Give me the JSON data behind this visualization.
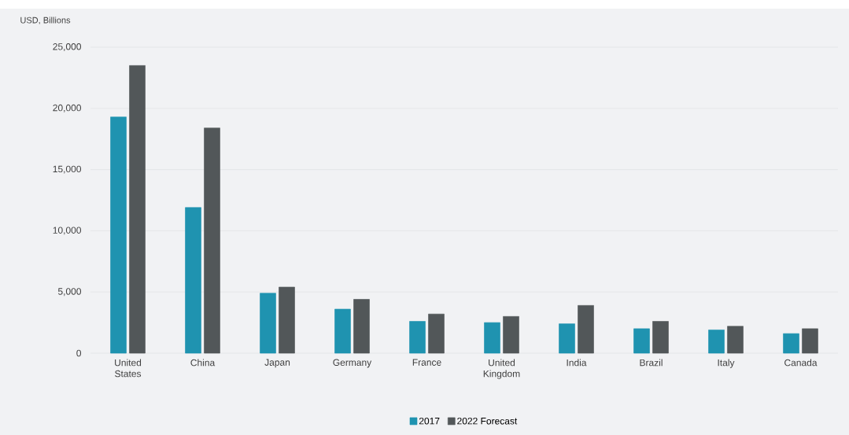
{
  "chart_data": {
    "type": "bar",
    "ylabel": "USD, Billions",
    "categories": [
      "United States",
      "China",
      "Japan",
      "Germany",
      "France",
      "United Kingdom",
      "India",
      "Brazil",
      "Italy",
      "Canada"
    ],
    "series": [
      {
        "name": "2017",
        "color": "#1f93b0",
        "values": [
          19300,
          11900,
          4900,
          3600,
          2600,
          2500,
          2400,
          2000,
          1900,
          1600
        ]
      },
      {
        "name": "2022 Forecast",
        "color": "#525759",
        "values": [
          23500,
          18400,
          5400,
          4400,
          3200,
          3000,
          3900,
          2600,
          2200,
          2000
        ]
      }
    ],
    "ylim": [
      0,
      25000
    ],
    "yticks": [
      {
        "value": 0,
        "label": "0"
      },
      {
        "value": 5000,
        "label": "5,000"
      },
      {
        "value": 10000,
        "label": "10,000"
      },
      {
        "value": 15000,
        "label": "15,000"
      },
      {
        "value": 20000,
        "label": "20,000"
      },
      {
        "value": 25000,
        "label": "25,000"
      }
    ],
    "grid": "y",
    "legend": "bottom"
  }
}
